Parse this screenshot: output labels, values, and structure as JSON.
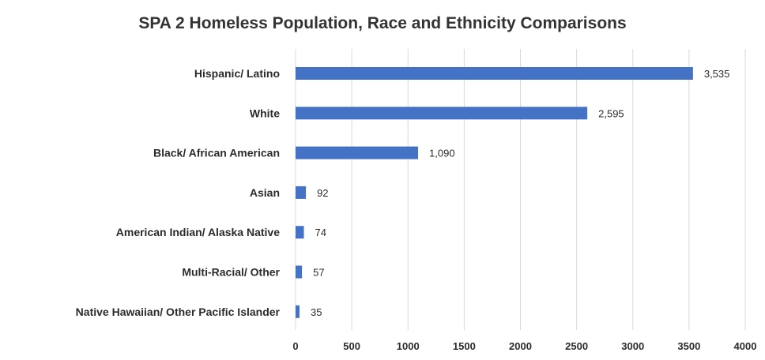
{
  "chart_data": {
    "type": "bar",
    "orientation": "horizontal",
    "title": "SPA 2 Homeless Population, Race and Ethnicity Comparisons",
    "categories": [
      "Hispanic/ Latino",
      "White",
      "Black/ African American",
      "Asian",
      "American Indian/ Alaska Native",
      "Multi-Racial/ Other",
      "Native Hawaiian/ Other Pacific Islander"
    ],
    "values": [
      3535,
      2595,
      1090,
      92,
      74,
      57,
      35
    ],
    "data_labels": [
      "3,535",
      "2,595",
      "1,090",
      "92",
      "74",
      "57",
      "35"
    ],
    "xlim": [
      0,
      4000
    ],
    "x_ticks": [
      "0",
      "500",
      "1000",
      "1500",
      "2000",
      "2500",
      "3000",
      "3500",
      "4000"
    ],
    "grid": true,
    "legend": "none",
    "colors": {
      "bar": "#4472c4",
      "grid": "#d9d9d9"
    }
  }
}
